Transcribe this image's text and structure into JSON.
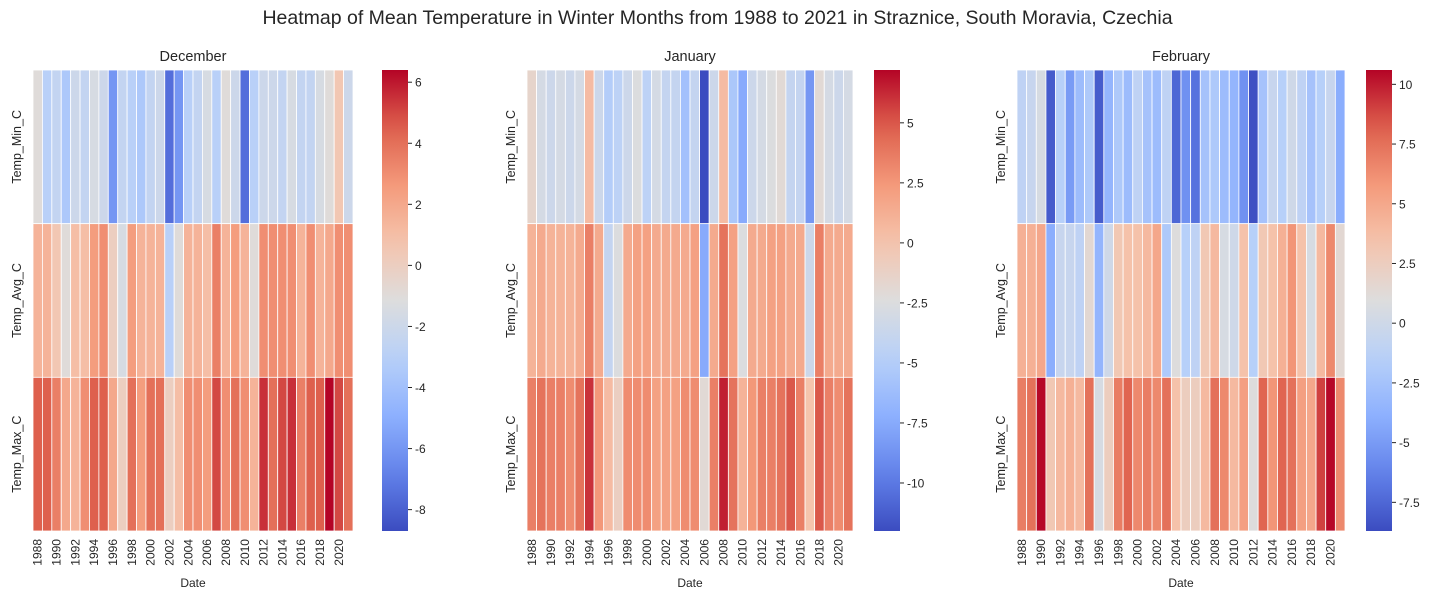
{
  "figure": {
    "title": "Heatmap of Mean Temperature in Winter Months from 1988 to 2021 in Straznice, South Moravia, Czechia"
  },
  "chart_data": [
    {
      "type": "heatmap",
      "title": "December",
      "xlabel": "Date",
      "ylabel": "",
      "rows": [
        "Temp_Min_C",
        "Temp_Avg_C",
        "Temp_Max_C"
      ],
      "x": [
        1988,
        1989,
        1990,
        1991,
        1992,
        1993,
        1994,
        1995,
        1996,
        1997,
        1998,
        1999,
        2000,
        2001,
        2002,
        2003,
        2004,
        2005,
        2006,
        2007,
        2008,
        2009,
        2010,
        2011,
        2012,
        2013,
        2014,
        2015,
        2016,
        2017,
        2018,
        2019,
        2020,
        2021
      ],
      "x_tick_labels": [
        "1988",
        "1990",
        "1992",
        "1994",
        "1996",
        "1998",
        "2000",
        "2002",
        "2004",
        "2006",
        "2008",
        "2010",
        "2012",
        "2014",
        "2016",
        "2018",
        "2020"
      ],
      "values": [
        [
          -1,
          -3,
          -2.5,
          -3.5,
          -2,
          -2.5,
          -1.5,
          -2,
          -6,
          -2.5,
          -3,
          -3.5,
          -2.5,
          -2,
          -7.5,
          -6,
          -3,
          -2.5,
          -1.5,
          -3,
          -1,
          -2,
          -7.5,
          -3,
          -2,
          -2,
          -2.5,
          -1.5,
          -2.5,
          -2.5,
          -1.5,
          -1,
          0.5,
          -2
        ],
        [
          1.5,
          1.5,
          0.5,
          -1,
          1,
          1,
          2.5,
          3,
          0,
          -1.5,
          2.5,
          1.5,
          1.5,
          1.5,
          -3,
          -1,
          1.5,
          1.5,
          1,
          3.5,
          1.5,
          2.5,
          1.5,
          -1,
          3,
          3,
          3,
          3,
          1.5,
          3,
          1.5,
          2,
          3,
          3
        ],
        [
          4.5,
          4.5,
          3.5,
          2,
          1.5,
          3,
          4.5,
          4.5,
          2,
          0,
          4,
          2.5,
          4,
          4,
          0,
          1,
          3,
          3,
          2.5,
          5,
          3,
          4,
          3,
          1.5,
          5.5,
          4,
          5,
          5.5,
          3.5,
          4.5,
          4.5,
          6.5,
          5,
          4
        ]
      ],
      "colorbar": {
        "min": -8.7,
        "max": 6.4,
        "ticks": [
          -8,
          -6,
          -4,
          -2,
          0,
          2,
          4,
          6
        ]
      },
      "colormap": "coolwarm"
    },
    {
      "type": "heatmap",
      "title": "January",
      "xlabel": "Date",
      "ylabel": "",
      "rows": [
        "Temp_Min_C",
        "Temp_Avg_C",
        "Temp_Max_C"
      ],
      "x": [
        1988,
        1989,
        1990,
        1991,
        1992,
        1993,
        1994,
        1995,
        1996,
        1997,
        1998,
        1999,
        2000,
        2001,
        2002,
        2003,
        2004,
        2005,
        2006,
        2007,
        2008,
        2009,
        2010,
        2011,
        2012,
        2013,
        2014,
        2015,
        2016,
        2017,
        2018,
        2019,
        2020,
        2021
      ],
      "x_tick_labels": [
        "1988",
        "1990",
        "1992",
        "1994",
        "1996",
        "1998",
        "2000",
        "2002",
        "2004",
        "2006",
        "2008",
        "2010",
        "2012",
        "2014",
        "2016",
        "2018",
        "2020"
      ],
      "values": [
        [
          -1.5,
          -3,
          -3.5,
          -3,
          -3.5,
          -3,
          0.5,
          -3.5,
          -5,
          -4.5,
          -3.5,
          -2.5,
          -4.5,
          -3,
          -4,
          -4,
          -6,
          -4,
          -12,
          -3.5,
          0.5,
          -5.5,
          -7.5,
          -3.5,
          -3,
          -2.5,
          -2,
          -4,
          -4,
          -8.5,
          -2,
          -3,
          -3.5,
          -3
        ],
        [
          1,
          1.5,
          1,
          1,
          1,
          1.5,
          3.5,
          1.5,
          -4,
          -2.5,
          1.5,
          2,
          2,
          1.5,
          1.5,
          1.5,
          1.5,
          2,
          -7.5,
          1.5,
          4,
          2,
          -2.5,
          1.5,
          1.5,
          2,
          2,
          1.5,
          1.5,
          -3.5,
          3.5,
          1.5,
          1.5,
          1.5
        ],
        [
          3.5,
          4,
          3.5,
          3.5,
          3,
          4,
          6,
          2.5,
          0.5,
          -1,
          3,
          3,
          3,
          2,
          2,
          2,
          3,
          3,
          -2,
          3.5,
          6.5,
          4,
          1,
          2.5,
          3.5,
          3.5,
          4,
          5,
          3.5,
          0,
          5,
          3.5,
          3,
          4
        ]
      ],
      "colorbar": {
        "min": -12,
        "max": 7.2,
        "ticks": [
          -10,
          -7.5,
          -5,
          -2.5,
          0,
          2.5,
          5
        ]
      },
      "colormap": "coolwarm"
    },
    {
      "type": "heatmap",
      "title": "February",
      "xlabel": "Date",
      "ylabel": "",
      "rows": [
        "Temp_Min_C",
        "Temp_Avg_C",
        "Temp_Max_C"
      ],
      "x": [
        1988,
        1989,
        1990,
        1991,
        1992,
        1993,
        1994,
        1995,
        1996,
        1997,
        1998,
        1999,
        2000,
        2001,
        2002,
        2003,
        2004,
        2005,
        2006,
        2007,
        2008,
        2009,
        2010,
        2011,
        2012,
        2013,
        2014,
        2015,
        2016,
        2017,
        2018,
        2019,
        2020,
        2021
      ],
      "x_tick_labels": [
        "1988",
        "1990",
        "1992",
        "1994",
        "1996",
        "1998",
        "2000",
        "2002",
        "2004",
        "2006",
        "2008",
        "2010",
        "2012",
        "2014",
        "2016",
        "2018",
        "2020"
      ],
      "values": [
        [
          -1,
          -0.5,
          0.5,
          -8,
          -1.5,
          -5,
          -3,
          -2,
          -8,
          -3.5,
          -2,
          -3,
          -1,
          -2.5,
          -3,
          -1,
          -7.5,
          -5.5,
          -7,
          -2.5,
          -2,
          -3,
          -3.5,
          -5.5,
          -8.5,
          -2.5,
          -0.5,
          -1.5,
          0,
          -1,
          -2.5,
          -1.5,
          -0.5,
          -4
        ],
        [
          4.5,
          4.5,
          5,
          -4,
          -0.5,
          -0.5,
          -1,
          1.5,
          -3.5,
          0,
          3,
          3.5,
          3.5,
          4,
          5,
          -2,
          1,
          -1.5,
          -1,
          3,
          4,
          0.5,
          0,
          3.5,
          -1.5,
          3,
          3.5,
          4.5,
          6,
          3.5,
          0.5,
          4,
          6.5,
          1.5
        ],
        [
          7,
          7.5,
          10.5,
          3,
          4,
          4.5,
          4,
          7.5,
          0.5,
          2.5,
          7,
          8,
          6.5,
          7,
          6.5,
          7.5,
          3.5,
          2.5,
          2.5,
          4,
          7.5,
          6.5,
          4,
          5.5,
          1,
          8,
          6,
          8,
          7.5,
          5.5,
          5,
          9,
          10.5,
          6.5
        ]
      ],
      "colorbar": {
        "min": -8.7,
        "max": 10.6,
        "ticks": [
          -7.5,
          -5,
          -2.5,
          0,
          2.5,
          5,
          7.5,
          10
        ]
      },
      "colormap": "coolwarm"
    }
  ]
}
